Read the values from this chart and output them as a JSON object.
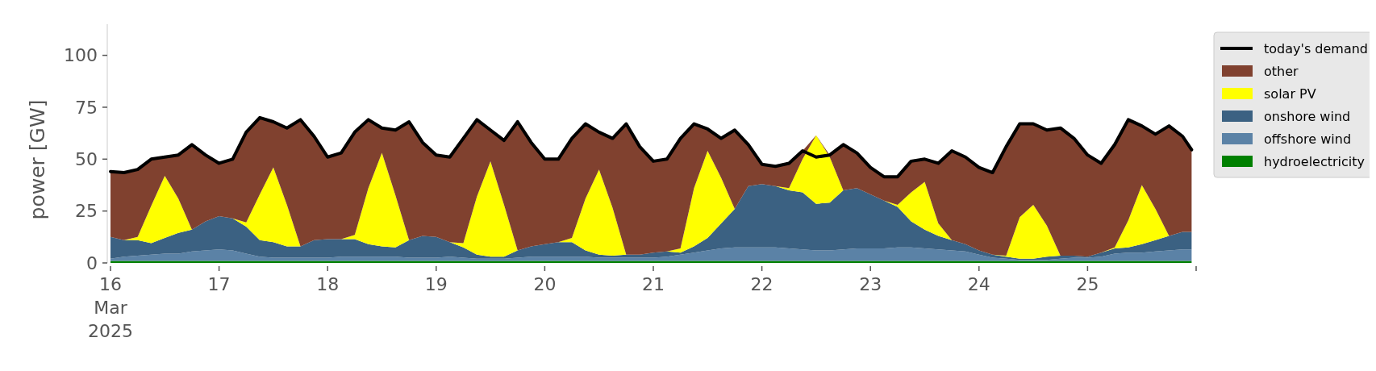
{
  "chart_data": {
    "type": "area",
    "stacked": true,
    "ylabel": "power [GW]",
    "legend": "right",
    "grid": false,
    "x": [
      "2025-03-16T00:00",
      "2025-03-16T03:00",
      "2025-03-16T06:00",
      "2025-03-16T09:00",
      "2025-03-16T12:00",
      "2025-03-16T15:00",
      "2025-03-16T18:00",
      "2025-03-16T21:00",
      "2025-03-17T00:00",
      "2025-03-17T03:00",
      "2025-03-17T06:00",
      "2025-03-17T09:00",
      "2025-03-17T12:00",
      "2025-03-17T15:00",
      "2025-03-17T18:00",
      "2025-03-17T21:00",
      "2025-03-18T00:00",
      "2025-03-18T03:00",
      "2025-03-18T06:00",
      "2025-03-18T09:00",
      "2025-03-18T12:00",
      "2025-03-18T15:00",
      "2025-03-18T18:00",
      "2025-03-18T21:00",
      "2025-03-19T00:00",
      "2025-03-19T03:00",
      "2025-03-19T06:00",
      "2025-03-19T09:00",
      "2025-03-19T12:00",
      "2025-03-19T15:00",
      "2025-03-19T18:00",
      "2025-03-19T21:00",
      "2025-03-20T00:00",
      "2025-03-20T03:00",
      "2025-03-20T06:00",
      "2025-03-20T09:00",
      "2025-03-20T12:00",
      "2025-03-20T15:00",
      "2025-03-20T18:00",
      "2025-03-20T21:00",
      "2025-03-21T00:00",
      "2025-03-21T03:00",
      "2025-03-21T06:00",
      "2025-03-21T09:00",
      "2025-03-21T12:00",
      "2025-03-21T15:00",
      "2025-03-21T18:00",
      "2025-03-21T21:00",
      "2025-03-22T00:00",
      "2025-03-22T03:00",
      "2025-03-22T06:00",
      "2025-03-22T09:00",
      "2025-03-22T12:00",
      "2025-03-22T15:00",
      "2025-03-22T18:00",
      "2025-03-22T21:00",
      "2025-03-23T00:00",
      "2025-03-23T03:00",
      "2025-03-23T06:00",
      "2025-03-23T09:00",
      "2025-03-23T12:00",
      "2025-03-23T15:00",
      "2025-03-23T18:00",
      "2025-03-23T21:00",
      "2025-03-24T00:00",
      "2025-03-24T03:00",
      "2025-03-24T06:00",
      "2025-03-24T09:00",
      "2025-03-24T12:00",
      "2025-03-24T15:00",
      "2025-03-24T18:00",
      "2025-03-24T21:00",
      "2025-03-25T00:00",
      "2025-03-25T03:00",
      "2025-03-25T06:00",
      "2025-03-25T09:00",
      "2025-03-25T12:00",
      "2025-03-25T15:00",
      "2025-03-25T18:00",
      "2025-03-25T21:00",
      "2025-03-25T23:00"
    ],
    "xlim": [
      "2025-03-16",
      "2025-03-26"
    ],
    "xticks": [
      {
        "value": "2025-03-16",
        "label": "16\nMar\n2025"
      },
      {
        "value": "2025-03-17",
        "label": "17"
      },
      {
        "value": "2025-03-18",
        "label": "18"
      },
      {
        "value": "2025-03-19",
        "label": "19"
      },
      {
        "value": "2025-03-20",
        "label": "20"
      },
      {
        "value": "2025-03-21",
        "label": "21"
      },
      {
        "value": "2025-03-22",
        "label": "22"
      },
      {
        "value": "2025-03-23",
        "label": "23"
      },
      {
        "value": "2025-03-24",
        "label": "24"
      },
      {
        "value": "2025-03-25",
        "label": "25"
      },
      {
        "value": "2025-03-26",
        "label": null
      }
    ],
    "ylim": [
      0,
      115
    ],
    "yticks": [
      0,
      25,
      50,
      75,
      100
    ],
    "series": [
      {
        "name": "hydroelectricity",
        "color": "#008000",
        "values": [
          1,
          1,
          1,
          1,
          1,
          1,
          1,
          1,
          1,
          1,
          1,
          1,
          1,
          1,
          1,
          1,
          1,
          1,
          1,
          1,
          1,
          1,
          1,
          1,
          1,
          1,
          1,
          1,
          1,
          1,
          1,
          1,
          1,
          1,
          1,
          1,
          1,
          1,
          1,
          1,
          1,
          1,
          1,
          1,
          1,
          1,
          1,
          1,
          1,
          1,
          1,
          1,
          1,
          1,
          1,
          1,
          1,
          1,
          1,
          1,
          1,
          1,
          1,
          1,
          1,
          1,
          1,
          1,
          1,
          1,
          1,
          1,
          1,
          1,
          1,
          1,
          1,
          1,
          1,
          1,
          1
        ]
      },
      {
        "name": "offshore wind",
        "color": "#5b82a6",
        "values": [
          1,
          2,
          2.5,
          3,
          3.5,
          3.5,
          4.5,
          5,
          5.5,
          5,
          3.5,
          2,
          1.5,
          1.5,
          1.5,
          1.5,
          1.5,
          2,
          2,
          2,
          2,
          2,
          1.5,
          1.5,
          1.5,
          2,
          1.5,
          1,
          1,
          1,
          1.5,
          2,
          2,
          2,
          2,
          2,
          1.5,
          1.5,
          1.5,
          1.5,
          1.5,
          2,
          3,
          4,
          5,
          6,
          6.5,
          6.5,
          6.5,
          6.5,
          6,
          5.5,
          5,
          5,
          5.5,
          6,
          6,
          6,
          6.5,
          6.5,
          6,
          5.5,
          5,
          4.5,
          3,
          1.5,
          1,
          0.5,
          0.5,
          0.5,
          1,
          1.5,
          1.5,
          2,
          3.5,
          4,
          4,
          4.5,
          5,
          5.5,
          5.5
        ]
      },
      {
        "name": "onshore wind",
        "color": "#3b6182",
        "values": [
          10.5,
          8,
          7.5,
          5.5,
          7.5,
          10,
          10.5,
          14,
          16,
          15.5,
          13,
          8,
          7.5,
          5.5,
          5.5,
          8.5,
          9,
          8.5,
          8.5,
          6,
          5,
          4.5,
          8.5,
          10.5,
          10,
          7,
          5,
          2,
          1,
          1,
          3.5,
          5,
          6,
          7,
          7,
          3,
          1.5,
          1,
          1.5,
          1.5,
          2.5,
          2.5,
          1,
          3,
          6,
          12,
          18.5,
          29.5,
          30.5,
          29.5,
          28,
          27.5,
          22.5,
          23,
          28.5,
          29,
          26,
          23,
          19.5,
          12.5,
          9,
          6.5,
          5,
          3.5,
          2,
          1.5,
          1,
          0.5,
          0.5,
          1.5,
          1.5,
          1,
          0.5,
          2,
          2.5,
          2.5,
          4,
          5.5,
          7,
          8.5,
          8.5
        ]
      },
      {
        "name": "solar PV",
        "color": "#ffff00",
        "values": [
          0,
          0,
          1.5,
          18,
          30,
          16.5,
          0,
          0,
          0,
          0,
          2,
          22,
          36,
          20,
          0,
          0,
          0,
          0,
          2,
          27,
          45,
          25,
          0,
          0,
          0,
          0,
          2,
          28,
          46,
          25,
          0,
          0,
          0,
          0,
          2,
          25,
          41,
          23,
          0,
          0,
          0,
          0,
          2,
          28,
          42,
          22,
          0,
          0,
          0,
          0,
          1,
          16,
          33,
          22,
          0,
          0,
          0,
          0,
          1,
          14,
          23,
          6,
          0,
          0,
          0,
          0,
          0.5,
          20,
          26,
          15,
          0,
          0,
          0,
          0,
          0.5,
          13,
          28.5,
          15,
          0,
          0,
          0
        ]
      },
      {
        "name": "other",
        "color": "#80412f",
        "values": [
          31.5,
          32.5,
          32.5,
          22.5,
          9,
          21,
          41,
          32,
          25.5,
          28.5,
          43.5,
          37,
          22,
          37,
          61,
          50,
          39.5,
          41.5,
          49.5,
          33,
          12,
          31.5,
          57,
          45,
          39.5,
          41,
          50.5,
          37,
          15,
          31,
          62,
          50,
          41,
          40,
          48,
          36,
          18,
          33.5,
          63,
          52,
          44,
          44.5,
          53,
          31,
          10.5,
          19,
          38,
          20,
          9.5,
          9.5,
          12,
          4,
          0,
          1,
          22,
          17,
          13,
          11.5,
          13.5,
          15,
          11,
          29,
          43,
          42,
          40,
          39.5,
          52.5,
          45,
          39,
          46,
          61.5,
          56.5,
          49,
          43,
          49.5,
          48.5,
          28.5,
          36,
          53,
          46,
          39.5
        ]
      },
      {
        "name": "today's demand",
        "type": "line",
        "color": "#000000",
        "line_style": "solid",
        "values": [
          44,
          43.5,
          45,
          50,
          51,
          52,
          57,
          52,
          48,
          50,
          63,
          70,
          68,
          65,
          69,
          61,
          51,
          53,
          63,
          69,
          65,
          64,
          68,
          58,
          52,
          51,
          60,
          69,
          64,
          59,
          68,
          58,
          50,
          50,
          60,
          67,
          63,
          60,
          67,
          56,
          49,
          50,
          60,
          67,
          64.5,
          60,
          64,
          57,
          47.5,
          46.5,
          48,
          54,
          51,
          52,
          57,
          53,
          46,
          41.5,
          41.5,
          49,
          50,
          48,
          54,
          51,
          46,
          43.5,
          56,
          67,
          67,
          64,
          65,
          60,
          52,
          48,
          57,
          69,
          66,
          62,
          66,
          61,
          54.5
        ]
      }
    ]
  }
}
